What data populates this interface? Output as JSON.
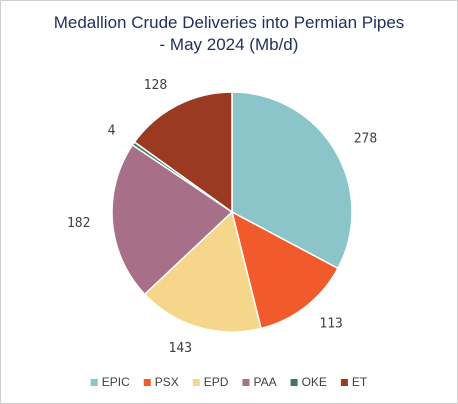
{
  "chart_data": {
    "type": "pie",
    "title": "Medallion Crude Deliveries into Permian Pipes - May 2024 (Mb/d)",
    "categories": [
      "EPIC",
      "PSX",
      "EPD",
      "PAA",
      "OKE",
      "ET"
    ],
    "values": [
      278,
      113,
      143,
      182,
      4,
      128
    ],
    "colors": [
      "#8cc5c9",
      "#f15a2b",
      "#f5d68b",
      "#a87088",
      "#3d7a5e",
      "#9b3a22"
    ],
    "legend": "bottom"
  }
}
